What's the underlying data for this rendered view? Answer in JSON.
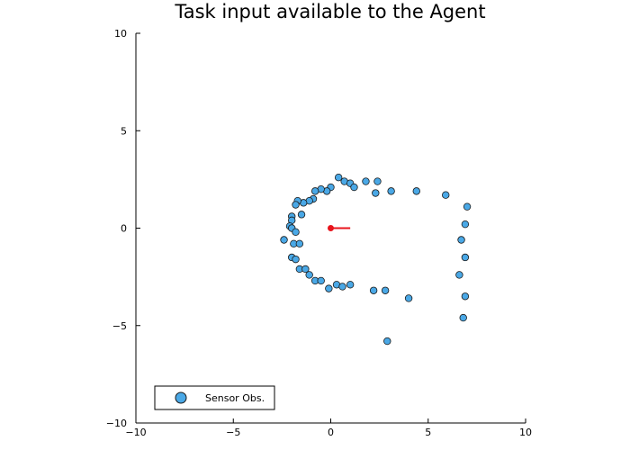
{
  "chart_data": {
    "type": "scatter",
    "title": "Task input available to the Agent",
    "xlabel": "",
    "ylabel": "",
    "xlim": [
      -10,
      10
    ],
    "ylim": [
      -10,
      10
    ],
    "grid": false,
    "legend_position": "bottom-left",
    "x_ticks": [
      -10,
      -5,
      0,
      5,
      10
    ],
    "x_tick_labels": [
      "−10",
      "−5",
      "0",
      "5",
      "10"
    ],
    "y_ticks": [
      -10,
      -5,
      0,
      5,
      10
    ],
    "y_tick_labels": [
      "−10",
      "−5",
      "0",
      "5",
      "10"
    ],
    "series": [
      {
        "name": "Sensor Obs.",
        "color": "#4aa8e6",
        "edge_color": "#1a1a1a",
        "points": [
          [
            0.4,
            2.6
          ],
          [
            0.7,
            2.4
          ],
          [
            1.0,
            2.3
          ],
          [
            1.2,
            2.1
          ],
          [
            1.8,
            2.4
          ],
          [
            2.4,
            2.4
          ],
          [
            2.3,
            1.8
          ],
          [
            3.1,
            1.9
          ],
          [
            4.4,
            1.9
          ],
          [
            5.9,
            1.7
          ],
          [
            7.0,
            1.1
          ],
          [
            6.9,
            0.2
          ],
          [
            6.7,
            -0.6
          ],
          [
            6.9,
            -1.5
          ],
          [
            6.6,
            -2.4
          ],
          [
            6.9,
            -3.5
          ],
          [
            6.8,
            -4.6
          ],
          [
            0.0,
            2.1
          ],
          [
            -0.2,
            1.9
          ],
          [
            -0.5,
            2.0
          ],
          [
            -0.8,
            1.9
          ],
          [
            -0.9,
            1.5
          ],
          [
            -1.1,
            1.4
          ],
          [
            -1.4,
            1.3
          ],
          [
            -1.7,
            1.4
          ],
          [
            -1.8,
            1.2
          ],
          [
            -1.5,
            0.7
          ],
          [
            -2.0,
            0.6
          ],
          [
            -2.0,
            0.4
          ],
          [
            -2.1,
            0.1
          ],
          [
            -2.0,
            0.0
          ],
          [
            -1.8,
            -0.2
          ],
          [
            -2.4,
            -0.6
          ],
          [
            -1.9,
            -0.8
          ],
          [
            -1.6,
            -0.8
          ],
          [
            -2.0,
            -1.5
          ],
          [
            -1.8,
            -1.6
          ],
          [
            -1.6,
            -2.1
          ],
          [
            -1.3,
            -2.1
          ],
          [
            -1.1,
            -2.4
          ],
          [
            -0.8,
            -2.7
          ],
          [
            -0.5,
            -2.7
          ],
          [
            -0.1,
            -3.1
          ],
          [
            0.3,
            -2.9
          ],
          [
            0.6,
            -3.0
          ],
          [
            1.0,
            -2.9
          ],
          [
            2.2,
            -3.2
          ],
          [
            2.8,
            -3.2
          ],
          [
            4.0,
            -3.6
          ],
          [
            2.9,
            -5.8
          ]
        ]
      }
    ],
    "agent": {
      "position": [
        0,
        0
      ],
      "heading_end": [
        1,
        0
      ],
      "color": "#e8141c"
    }
  }
}
